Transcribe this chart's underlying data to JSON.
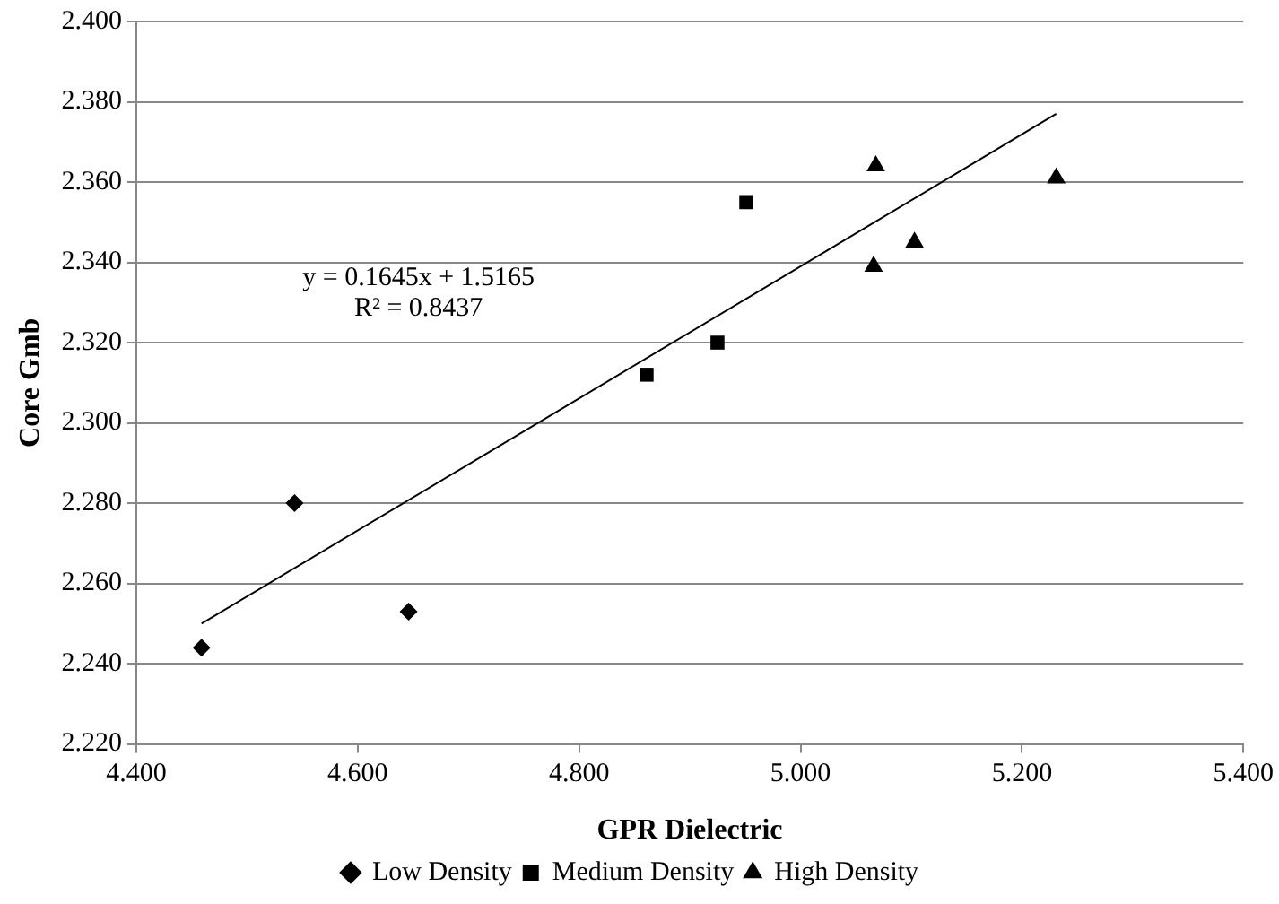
{
  "chart_data": {
    "type": "scatter",
    "xlabel": "GPR Dielectric",
    "ylabel": "Core Gmb",
    "xlim": [
      4.4,
      5.4
    ],
    "xticks": [
      {
        "value": 4.4,
        "label": "4.400"
      },
      {
        "value": 4.6,
        "label": "4.600"
      },
      {
        "value": 4.8,
        "label": "4.800"
      },
      {
        "value": 5.0,
        "label": "5.000"
      },
      {
        "value": 5.2,
        "label": "5.200"
      },
      {
        "value": 5.4,
        "label": "5.400"
      }
    ],
    "ylim": [
      2.22,
      2.4
    ],
    "yticks": [
      {
        "value": 2.22,
        "label": "2.220"
      },
      {
        "value": 2.24,
        "label": "2.240"
      },
      {
        "value": 2.26,
        "label": "2.260"
      },
      {
        "value": 2.28,
        "label": "2.280"
      },
      {
        "value": 2.3,
        "label": "2.300"
      },
      {
        "value": 2.32,
        "label": "2.320"
      },
      {
        "value": 2.34,
        "label": "2.340"
      },
      {
        "value": 2.36,
        "label": "2.360"
      },
      {
        "value": 2.38,
        "label": "2.380"
      },
      {
        "value": 2.4,
        "label": "2.400"
      }
    ],
    "grid": "y",
    "legend": "bottom",
    "annotations": [
      "y = 0.1645x + 1.5165",
      "R² = 0.8437"
    ],
    "series": [
      {
        "name": "Low Density",
        "color": "#000000",
        "marker": "diamond",
        "x": [
          4.459,
          4.543,
          4.646
        ],
        "values": [
          2.244,
          2.28,
          2.253
        ]
      },
      {
        "name": "Medium Density",
        "color": "#000000",
        "marker": "square",
        "x": [
          4.861,
          4.925,
          4.951
        ],
        "values": [
          2.312,
          2.32,
          2.355
        ]
      },
      {
        "name": "High Density",
        "color": "#000000",
        "marker": "triangle",
        "x": [
          5.066,
          5.068,
          5.103,
          5.231
        ],
        "values": [
          2.339,
          2.364,
          2.345,
          2.361
        ]
      },
      {
        "type": "line",
        "color": "#000000",
        "marker": "none",
        "x": [
          4.459,
          5.231
        ],
        "values": [
          2.25,
          2.377
        ]
      }
    ]
  }
}
